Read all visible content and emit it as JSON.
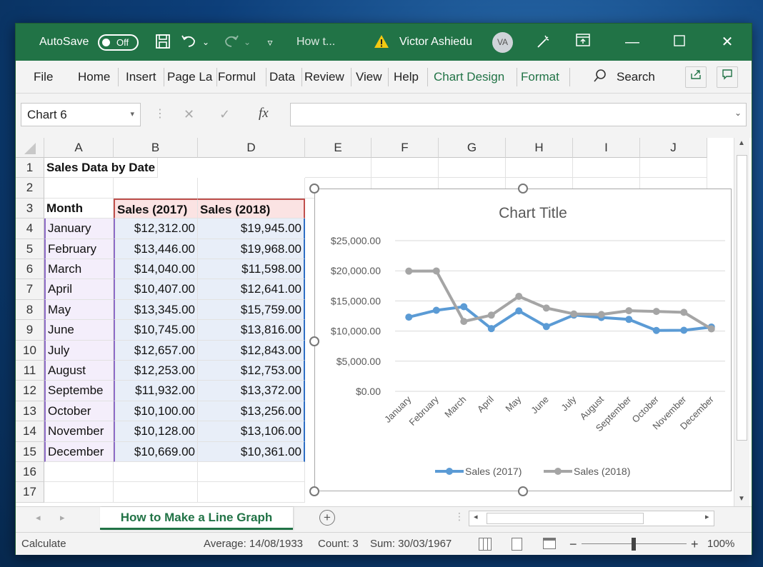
{
  "titlebar": {
    "autosave_label": "AutoSave",
    "autosave_state": "Off",
    "doc_title": "How t...",
    "user_name": "Victor Ashiedu",
    "user_initials": "VA",
    "accent": "#217346"
  },
  "ribbon": {
    "tabs": [
      "File",
      "Home",
      "Insert",
      "Page La",
      "Formul",
      "Data",
      "Review",
      "View",
      "Help",
      "Chart Design",
      "Format"
    ],
    "search_label": "Search"
  },
  "formula_bar": {
    "name_box": "Chart 6",
    "fx_label": "fx"
  },
  "columns": [
    "A",
    "B",
    "D",
    "E",
    "F",
    "G",
    "H",
    "I",
    "J"
  ],
  "rows": [
    "1",
    "2",
    "3",
    "4",
    "5",
    "6",
    "7",
    "8",
    "9",
    "10",
    "11",
    "12",
    "13",
    "14",
    "15",
    "16",
    "17"
  ],
  "sheet": {
    "title": "Sales Data by Date",
    "headers": [
      "Month",
      "Sales (2017)",
      "Sales (2018)"
    ],
    "data": [
      [
        "January",
        "$12,312.00",
        "$19,945.00"
      ],
      [
        "February",
        "$13,446.00",
        "$19,968.00"
      ],
      [
        "March",
        "$14,040.00",
        "$11,598.00"
      ],
      [
        "April",
        "$10,407.00",
        "$12,641.00"
      ],
      [
        "May",
        "$13,345.00",
        "$15,759.00"
      ],
      [
        "June",
        "$10,745.00",
        "$13,816.00"
      ],
      [
        "July",
        "$12,657.00",
        "$12,843.00"
      ],
      [
        "August",
        "$12,253.00",
        "$12,753.00"
      ],
      [
        "Septembe",
        "$11,932.00",
        "$13,372.00"
      ],
      [
        "October",
        "$10,100.00",
        "$13,256.00"
      ],
      [
        "November",
        "$10,128.00",
        "$13,106.00"
      ],
      [
        "December",
        "$10,669.00",
        "$10,361.00"
      ]
    ]
  },
  "chart_data": {
    "type": "line",
    "title": "Chart Title",
    "categories": [
      "January",
      "February",
      "March",
      "April",
      "May",
      "June",
      "July",
      "August",
      "September",
      "October",
      "November",
      "December"
    ],
    "series": [
      {
        "name": "Sales (2017)",
        "color": "#5b9bd5",
        "values": [
          12312,
          13446,
          14040,
          10407,
          13345,
          10745,
          12657,
          12253,
          11932,
          10100,
          10128,
          10669
        ]
      },
      {
        "name": "Sales (2018)",
        "color": "#a5a5a5",
        "values": [
          19945,
          19968,
          11598,
          12641,
          15759,
          13816,
          12843,
          12753,
          13372,
          13256,
          13106,
          10361
        ]
      }
    ],
    "ylim": [
      0,
      25000
    ],
    "yticks": [
      "$0.00",
      "$5,000.00",
      "$10,000.00",
      "$15,000.00",
      "$20,000.00",
      "$25,000.00"
    ],
    "grid": true,
    "legend": "bottom"
  },
  "sheet_tab": "How to Make a Line Graph",
  "statusbar": {
    "mode": "Calculate",
    "average": "Average: 14/08/1933",
    "count": "Count: 3",
    "sum": "Sum: 30/03/1967",
    "zoom": "100%"
  }
}
